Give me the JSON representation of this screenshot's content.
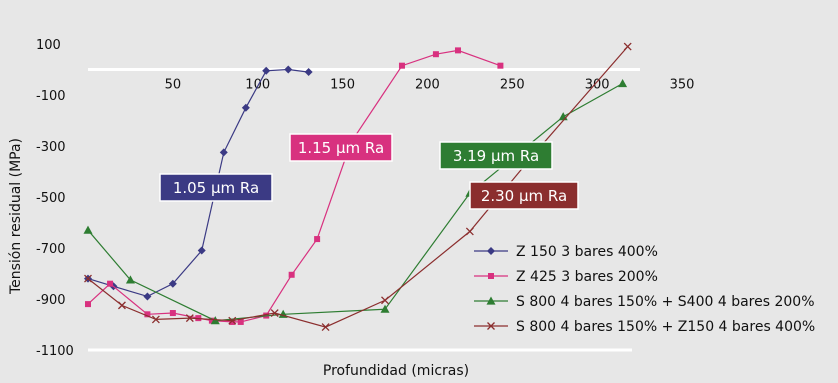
{
  "chart_data": {
    "type": "line",
    "title": "",
    "xlabel": "Profundidad (micras)",
    "ylabel": "Tensión residual (MPa)",
    "xlim": [
      0,
      350
    ],
    "ylim": [
      -1100,
      100
    ],
    "x_ticks": [
      50,
      100,
      150,
      200,
      250,
      300,
      350
    ],
    "y_ticks": [
      100,
      -100,
      -300,
      -500,
      -700,
      -900,
      -1100
    ],
    "grid": false,
    "legend_position": "bottom-right",
    "series": [
      {
        "name": "Z 150 3 bares 400%",
        "color": "#3b3a84",
        "marker": "diamond",
        "points": [
          [
            0,
            -820
          ],
          [
            15,
            -850
          ],
          [
            35,
            -890
          ],
          [
            50,
            -840
          ],
          [
            67,
            -710
          ],
          [
            80,
            -325
          ],
          [
            93,
            -150
          ],
          [
            105,
            -5
          ],
          [
            118,
            0
          ],
          [
            130,
            -10
          ]
        ]
      },
      {
        "name": "Z 425 3 bares 200%",
        "color": "#d8317f",
        "marker": "square",
        "points": [
          [
            0,
            -920
          ],
          [
            13,
            -840
          ],
          [
            35,
            -960
          ],
          [
            50,
            -955
          ],
          [
            65,
            -975
          ],
          [
            73,
            -985
          ],
          [
            85,
            -990
          ],
          [
            90,
            -990
          ],
          [
            105,
            -965
          ],
          [
            120,
            -805
          ],
          [
            135,
            -665
          ],
          [
            155,
            -285
          ],
          [
            185,
            15
          ],
          [
            205,
            60
          ],
          [
            218,
            75
          ],
          [
            243,
            15
          ]
        ]
      },
      {
        "name": "S 800 4 bares 150% + S400 4 bares 200%",
        "color": "#2e7d32",
        "marker": "triangle",
        "points": [
          [
            0,
            -630
          ],
          [
            25,
            -825
          ],
          [
            75,
            -985
          ],
          [
            115,
            -960
          ],
          [
            175,
            -940
          ],
          [
            225,
            -485
          ],
          [
            280,
            -185
          ],
          [
            315,
            -55
          ]
        ]
      },
      {
        "name": "S 800 4 bares 150% + Z150 4 bares 400%",
        "color": "#8b2e2e",
        "marker": "x",
        "points": [
          [
            0,
            -820
          ],
          [
            20,
            -925
          ],
          [
            40,
            -980
          ],
          [
            60,
            -975
          ],
          [
            85,
            -985
          ],
          [
            110,
            -955
          ],
          [
            140,
            -1010
          ],
          [
            175,
            -905
          ],
          [
            225,
            -635
          ],
          [
            265,
            -315
          ],
          [
            318,
            90
          ]
        ]
      }
    ],
    "annotations": [
      {
        "text": "1.05 µm Ra",
        "color": "#3b3a84"
      },
      {
        "text": "1.15 µm Ra",
        "color": "#d8317f"
      },
      {
        "text": "3.19 µm Ra",
        "color": "#2e7d32"
      },
      {
        "text": "2.30 µm Ra",
        "color": "#8b2e2e"
      }
    ]
  }
}
